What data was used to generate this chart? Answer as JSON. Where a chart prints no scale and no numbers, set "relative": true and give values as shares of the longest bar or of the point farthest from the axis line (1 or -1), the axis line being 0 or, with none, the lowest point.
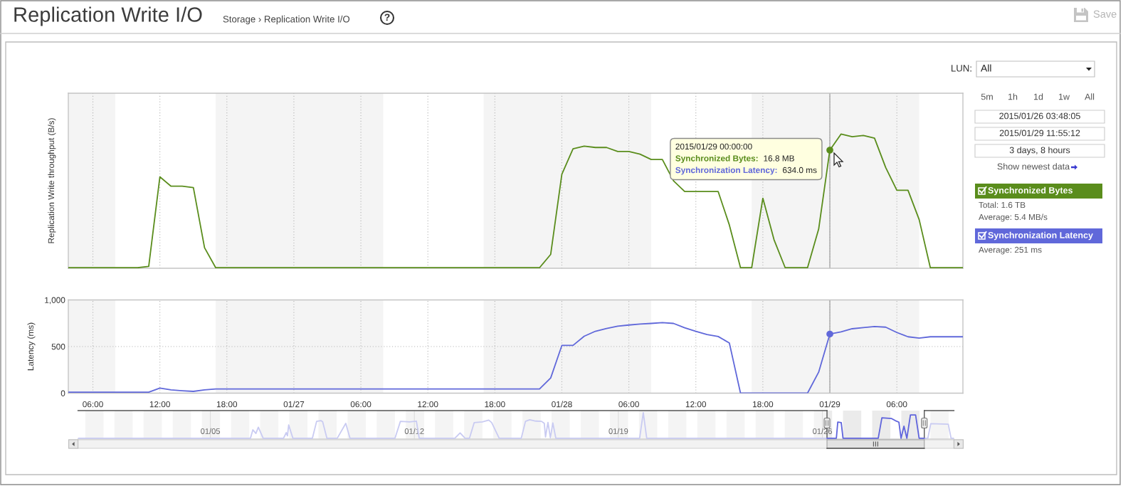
{
  "chart_data": [
    {
      "type": "line",
      "ylabel": "Replication Write throughput (B/s)",
      "relative": true,
      "xlim": [
        "2015-01-26T03:48",
        "2015-01-29T11:55"
      ],
      "xticks": [
        "2015-01-26T06:00",
        "2015-01-26T12:00",
        "2015-01-26T18:00",
        "2015-01-27T00:00",
        "2015-01-27T06:00",
        "2015-01-27T12:00",
        "2015-01-27T18:00",
        "2015-01-28T00:00",
        "2015-01-28T06:00",
        "2015-01-28T12:00",
        "2015-01-28T18:00",
        "2015-01-29T00:00",
        "2015-01-29T06:00"
      ],
      "tick_labels": false,
      "grid": "x",
      "legend": "right",
      "bands": [
        {
          "axis": "x",
          "from": "2015-01-26T03:48",
          "to": "2015-01-26T08:00",
          "color": "#f4f4f4"
        },
        {
          "axis": "x",
          "from": "2015-01-26T17:00",
          "to": "2015-01-27T08:00",
          "color": "#f4f4f4"
        },
        {
          "axis": "x",
          "from": "2015-01-27T17:00",
          "to": "2015-01-28T08:00",
          "color": "#f4f4f4"
        },
        {
          "axis": "x",
          "from": "2015-01-28T17:00",
          "to": "2015-01-29T08:00",
          "color": "#f4f4f4"
        }
      ],
      "ref_lines": [
        {
          "axis": "x",
          "value": "2015-01-29T00:00",
          "color": "#a8a8a8"
        }
      ],
      "series": [
        {
          "name": "Synchronized Bytes",
          "color": "#5a8d1c",
          "x": [
            "2015-01-26T03:48",
            "2015-01-26T10:00",
            "2015-01-26T11:00",
            "2015-01-26T12:00",
            "2015-01-26T13:00",
            "2015-01-26T14:00",
            "2015-01-26T15:00",
            "2015-01-26T16:00",
            "2015-01-26T17:00",
            "2015-01-27T22:00",
            "2015-01-27T23:00",
            "2015-01-28T00:00",
            "2015-01-28T01:00",
            "2015-01-28T02:00",
            "2015-01-28T03:00",
            "2015-01-28T04:00",
            "2015-01-28T05:00",
            "2015-01-28T06:00",
            "2015-01-28T07:00",
            "2015-01-28T08:00",
            "2015-01-28T09:00",
            "2015-01-28T10:00",
            "2015-01-28T11:00",
            "2015-01-28T12:00",
            "2015-01-28T13:00",
            "2015-01-28T14:00",
            "2015-01-28T15:00",
            "2015-01-28T16:00",
            "2015-01-28T17:00",
            "2015-01-28T18:00",
            "2015-01-28T19:00",
            "2015-01-28T20:00",
            "2015-01-28T21:00",
            "2015-01-28T22:00",
            "2015-01-28T23:00",
            "2015-01-29T00:00",
            "2015-01-29T01:00",
            "2015-01-29T02:00",
            "2015-01-29T03:00",
            "2015-01-29T04:00",
            "2015-01-29T05:00",
            "2015-01-29T06:00",
            "2015-01-29T07:00",
            "2015-01-29T08:00",
            "2015-01-29T09:00",
            "2015-01-29T11:55"
          ],
          "values": [
            0,
            0,
            0.01,
            0.68,
            0.61,
            0.61,
            0.6,
            0.15,
            0,
            0,
            0.1,
            0.7,
            0.89,
            0.91,
            0.9,
            0.9,
            0.87,
            0.87,
            0.85,
            0.81,
            0.81,
            0.65,
            0.57,
            0.57,
            0.57,
            0.57,
            0.32,
            0,
            0,
            0.52,
            0.21,
            0,
            0,
            0,
            0.29,
            0.88,
            1,
            0.98,
            0.99,
            0.97,
            0.75,
            0.58,
            0.58,
            0.36,
            0,
            0
          ]
        },
        {
          "type": "scatter",
          "color": "#5a8d1c",
          "x": [
            "2015-01-29T00:00"
          ],
          "values": [
            0.88
          ]
        }
      ],
      "annotations": [
        {
          "text": "2015/01/29 00:00:00\nSynchronized Bytes: 16.8 MB\nSynchronization Latency: 634.0 ms",
          "x": "2015-01-29T00:00",
          "y": 0.88
        },
        "Total: 1.6 TB",
        "Average: 5.4 MB/s"
      ]
    },
    {
      "type": "line",
      "ylabel": "Latency (ms)",
      "xlim": [
        "2015-01-26T03:48",
        "2015-01-29T11:55"
      ],
      "xticks": [
        {
          "value": "2015-01-26T06:00",
          "label": "06:00"
        },
        {
          "value": "2015-01-26T12:00",
          "label": "12:00"
        },
        {
          "value": "2015-01-26T18:00",
          "label": "18:00"
        },
        {
          "value": "2015-01-27T00:00",
          "label": "01/27"
        },
        {
          "value": "2015-01-27T06:00",
          "label": "06:00"
        },
        {
          "value": "2015-01-27T12:00",
          "label": "12:00"
        },
        {
          "value": "2015-01-27T18:00",
          "label": "18:00"
        },
        {
          "value": "2015-01-28T00:00",
          "label": "01/28"
        },
        {
          "value": "2015-01-28T06:00",
          "label": "06:00"
        },
        {
          "value": "2015-01-28T12:00",
          "label": "12:00"
        },
        {
          "value": "2015-01-28T18:00",
          "label": "18:00"
        },
        {
          "value": "2015-01-29T00:00",
          "label": "01/29"
        },
        {
          "value": "2015-01-29T06:00",
          "label": "06:00"
        }
      ],
      "ylim": [
        0,
        1000
      ],
      "yticks": [
        0,
        500,
        {
          "value": 1000,
          "label": "1,000"
        }
      ],
      "grid": true,
      "legend": "right",
      "bands": [
        {
          "axis": "x",
          "from": "2015-01-26T03:48",
          "to": "2015-01-26T08:00",
          "color": "#f4f4f4"
        },
        {
          "axis": "x",
          "from": "2015-01-26T17:00",
          "to": "2015-01-27T08:00",
          "color": "#f4f4f4"
        },
        {
          "axis": "x",
          "from": "2015-01-27T17:00",
          "to": "2015-01-28T08:00",
          "color": "#f4f4f4"
        },
        {
          "axis": "x",
          "from": "2015-01-28T17:00",
          "to": "2015-01-29T08:00",
          "color": "#f4f4f4"
        }
      ],
      "ref_lines": [
        {
          "axis": "x",
          "value": "2015-01-29T00:00",
          "color": "#a8a8a8"
        }
      ],
      "series": [
        {
          "name": "Synchronization Latency",
          "color": "#6068da",
          "x": [
            "2015-01-26T03:48",
            "2015-01-26T11:00",
            "2015-01-26T12:00",
            "2015-01-26T13:00",
            "2015-01-26T14:00",
            "2015-01-26T15:00",
            "2015-01-26T16:00",
            "2015-01-26T17:00",
            "2015-01-27T22:00",
            "2015-01-27T23:00",
            "2015-01-28T00:00",
            "2015-01-28T01:00",
            "2015-01-28T02:00",
            "2015-01-28T03:00",
            "2015-01-28T04:00",
            "2015-01-28T05:00",
            "2015-01-28T06:00",
            "2015-01-28T07:00",
            "2015-01-28T08:00",
            "2015-01-28T09:00",
            "2015-01-28T10:00",
            "2015-01-28T11:00",
            "2015-01-28T12:00",
            "2015-01-28T13:00",
            "2015-01-28T14:00",
            "2015-01-28T15:00",
            "2015-01-28T16:00",
            "2015-01-28T22:00",
            "2015-01-28T23:00",
            "2015-01-29T00:00",
            "2015-01-29T01:00",
            "2015-01-29T02:00",
            "2015-01-29T03:00",
            "2015-01-29T04:00",
            "2015-01-29T05:00",
            "2015-01-29T06:00",
            "2015-01-29T07:00",
            "2015-01-29T08:00",
            "2015-01-29T09:00",
            "2015-01-29T11:55"
          ],
          "values": [
            10,
            10,
            54,
            35,
            26,
            19,
            35,
            45,
            45,
            163,
            512,
            512,
            611,
            664,
            694,
            718,
            731,
            741,
            748,
            757,
            748,
            701,
            664,
            628,
            608,
            538,
            0,
            0,
            226,
            634,
            658,
            691,
            704,
            714,
            708,
            651,
            605,
            591,
            605,
            605
          ]
        },
        {
          "type": "scatter",
          "color": "#6068da",
          "x": [
            "2015-01-29T00:00"
          ],
          "values": [
            634.0
          ]
        }
      ],
      "annotations": [
        "Average: 251 ms"
      ]
    },
    {
      "type": "line",
      "relative": true,
      "xlim": [
        "2014-12-31T11:00",
        "2015-01-30T12:20"
      ],
      "xticks": [
        {
          "value": "2015-01-05",
          "label": "01/05"
        },
        {
          "value": "2015-01-12",
          "label": "01/12"
        },
        {
          "value": "2015-01-19",
          "label": "01/19"
        },
        {
          "value": "2015-01-26",
          "label": "01/26"
        }
      ],
      "grid": "x",
      "bands": [
        {
          "axis": "x",
          "from": "2014-12-31T17:00",
          "to": "2015-01-01T08:00",
          "color": "#f4f4f4"
        },
        {
          "axis": "x",
          "from": "2015-01-01T17:00",
          "to": "2015-01-02T08:00",
          "color": "#f4f4f4"
        },
        {
          "axis": "x",
          "from": "2015-01-02T17:00",
          "to": "2015-01-03T08:00",
          "color": "#f4f4f4"
        },
        {
          "axis": "x",
          "from": "2015-01-03T17:00",
          "to": "2015-01-04T08:00",
          "color": "#f4f4f4"
        },
        {
          "axis": "x",
          "from": "2015-01-04T17:00",
          "to": "2015-01-05T08:00",
          "color": "#f4f4f4"
        },
        {
          "axis": "x",
          "from": "2015-01-05T17:00",
          "to": "2015-01-06T08:00",
          "color": "#f4f4f4"
        },
        {
          "axis": "x",
          "from": "2015-01-06T17:00",
          "to": "2015-01-07T08:00",
          "color": "#f4f4f4"
        },
        {
          "axis": "x",
          "from": "2015-01-07T17:00",
          "to": "2015-01-08T08:00",
          "color": "#f4f4f4"
        },
        {
          "axis": "x",
          "from": "2015-01-08T17:00",
          "to": "2015-01-09T08:00",
          "color": "#f4f4f4"
        },
        {
          "axis": "x",
          "from": "2015-01-09T17:00",
          "to": "2015-01-10T08:00",
          "color": "#f4f4f4"
        },
        {
          "axis": "x",
          "from": "2015-01-10T17:00",
          "to": "2015-01-11T08:00",
          "color": "#f4f4f4"
        },
        {
          "axis": "x",
          "from": "2015-01-11T17:00",
          "to": "2015-01-12T08:00",
          "color": "#f4f4f4"
        },
        {
          "axis": "x",
          "from": "2015-01-12T17:00",
          "to": "2015-01-13T08:00",
          "color": "#f4f4f4"
        },
        {
          "axis": "x",
          "from": "2015-01-13T17:00",
          "to": "2015-01-14T08:00",
          "color": "#f4f4f4"
        },
        {
          "axis": "x",
          "from": "2015-01-14T17:00",
          "to": "2015-01-15T08:00",
          "color": "#f4f4f4"
        },
        {
          "axis": "x",
          "from": "2015-01-15T17:00",
          "to": "2015-01-16T08:00",
          "color": "#f4f4f4"
        },
        {
          "axis": "x",
          "from": "2015-01-16T17:00",
          "to": "2015-01-17T08:00",
          "color": "#f4f4f4"
        },
        {
          "axis": "x",
          "from": "2015-01-17T17:00",
          "to": "2015-01-18T08:00",
          "color": "#f4f4f4"
        },
        {
          "axis": "x",
          "from": "2015-01-18T17:00",
          "to": "2015-01-19T08:00",
          "color": "#f4f4f4"
        },
        {
          "axis": "x",
          "from": "2015-01-19T17:00",
          "to": "2015-01-20T08:00",
          "color": "#f4f4f4"
        },
        {
          "axis": "x",
          "from": "2015-01-20T17:00",
          "to": "2015-01-21T08:00",
          "color": "#f4f4f4"
        },
        {
          "axis": "x",
          "from": "2015-01-21T17:00",
          "to": "2015-01-22T08:00",
          "color": "#f4f4f4"
        },
        {
          "axis": "x",
          "from": "2015-01-22T17:00",
          "to": "2015-01-23T08:00",
          "color": "#f4f4f4"
        },
        {
          "axis": "x",
          "from": "2015-01-23T17:00",
          "to": "2015-01-24T08:00",
          "color": "#f4f4f4"
        },
        {
          "axis": "x",
          "from": "2015-01-24T17:00",
          "to": "2015-01-25T08:00",
          "color": "#f4f4f4"
        },
        {
          "axis": "x",
          "from": "2015-01-25T17:00",
          "to": "2015-01-26T03:48",
          "color": "#f4f4f4"
        },
        {
          "axis": "x",
          "from": "2015-01-26T03:48",
          "to": "2015-01-26T08:00",
          "color": "#ebebeb"
        },
        {
          "axis": "x",
          "from": "2015-01-26T17:00",
          "to": "2015-01-27T08:00",
          "color": "#ebebeb"
        },
        {
          "axis": "x",
          "from": "2015-01-27T17:00",
          "to": "2015-01-28T08:00",
          "color": "#ebebeb"
        },
        {
          "axis": "x",
          "from": "2015-01-28T17:00",
          "to": "2015-01-29T08:00",
          "color": "#ebebeb"
        },
        {
          "axis": "x",
          "from": "2015-01-29T17:00",
          "to": "2015-01-30T08:00",
          "color": "#f4f4f4"
        }
      ],
      "ref_lines": [
        {
          "axis": "x",
          "value": "2015-01-26T03:48",
          "color": "#555555"
        },
        {
          "axis": "x",
          "value": "2015-01-29T11:55",
          "color": "#555555"
        }
      ],
      "series": [
        {
          "color": "#c9cbf2",
          "x": [
            "2014-12-31T11:00",
            "2015-01-06T09:00",
            "2015-01-06T11:00",
            "2015-01-06T13:30",
            "2015-01-06T15:30",
            "2015-01-06T19:30",
            "2015-01-07T12:15",
            "2015-01-07T14:30",
            "2015-01-07T15:30",
            "2015-01-07T16:30",
            "2015-01-07T20:00",
            "2015-01-08T12:00",
            "2015-01-08T15:30",
            "2015-01-08T19:00",
            "2015-01-08T20:30",
            "2015-01-09T00:00",
            "2015-01-09T08:30",
            "2015-01-09T15:30",
            "2015-01-09T19:00",
            "2015-01-11T08:00",
            "2015-01-11T12:30",
            "2015-01-11T20:00",
            "2015-01-12T01:40",
            "2015-01-12T04:00",
            "2015-01-13T09:20",
            "2015-01-13T13:40",
            "2015-01-13T17:45",
            "2015-01-13T21:20",
            "2015-01-14T01:15",
            "2015-01-14T08:00",
            "2015-01-14T13:15",
            "2015-01-14T15:40",
            "2015-01-14T21:50",
            "2015-01-15T16:00",
            "2015-01-15T19:30",
            "2015-01-15T23:00",
            "2015-01-16T04:00",
            "2015-01-16T08:40",
            "2015-01-16T11:00",
            "2015-01-16T12:00",
            "2015-01-16T14:00",
            "2015-01-16T16:00",
            "2015-01-16T18:00",
            "2015-01-16T20:30",
            "2015-01-19T17:30",
            "2015-01-19T20:30",
            "2015-01-19T23:20",
            "2015-01-26T03:48",
            "2015-01-27T12:00",
            "2015-01-29T11:55",
            "2015-01-29T14:50",
            "2015-01-29T17:15",
            "2015-01-30T07:40",
            "2015-01-30T10:00",
            "2015-01-30T12:20"
          ],
          "values": [
            0,
            0,
            0.33,
            0.19,
            0.43,
            0,
            0,
            0.22,
            0.1,
            0.52,
            0,
            0,
            0.66,
            0.69,
            0.64,
            0,
            0,
            0.58,
            0,
            0,
            0.66,
            0.64,
            0.67,
            0,
            0,
            0.21,
            0,
            0,
            0.61,
            0.64,
            0.71,
            0.61,
            0,
            0,
            0.66,
            0.72,
            0.67,
            0.66,
            0.58,
            0.05,
            0.62,
            0.02,
            0.6,
            0,
            0,
            1,
            0,
            0,
            null,
            0,
            0,
            0.57,
            0.55,
            0,
            0
          ]
        },
        {
          "color": "#5f64dc",
          "x": [
            "2015-01-26T03:48",
            "2015-01-26T11:30",
            "2015-01-26T12:40",
            "2015-01-26T15:30",
            "2015-01-26T17:00",
            "2015-01-27T22:00",
            "2015-01-28T01:00",
            "2015-01-28T09:00",
            "2015-01-28T12:00",
            "2015-01-28T15:00",
            "2015-01-28T16:45",
            "2015-01-28T19:10",
            "2015-01-28T21:35",
            "2015-01-29T00:30",
            "2015-01-29T04:45",
            "2015-01-29T07:40",
            "2015-01-29T11:55"
          ],
          "values": [
            0,
            0,
            0.63,
            0.61,
            0,
            0,
            0.8,
            0.77,
            0.69,
            0.63,
            0,
            0.47,
            0,
            0.91,
            0.91,
            0,
            0
          ]
        }
      ]
    },
    {
      "type": "other",
      "title": "Replication Write I/O",
      "subtitle": "Storage › Replication Write I/O",
      "annotations": [
        "?",
        "Save",
        "LUN:",
        "All",
        "5m",
        "1h",
        "1d",
        "1w",
        "All",
        "2015/01/26 03:48:05",
        "2015/01/29 11:55:12",
        "3 days, 8 hours",
        "Show newest data"
      ]
    }
  ]
}
